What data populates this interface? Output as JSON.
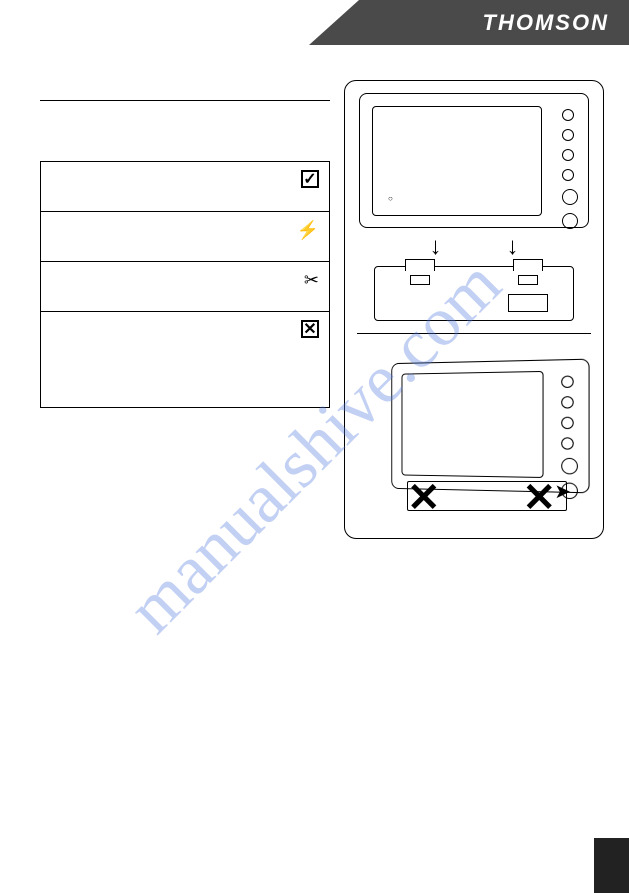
{
  "brand": "THOMSON",
  "watermark": "manualshive.com",
  "icons": {
    "check": "✓",
    "bolt": "⚡",
    "tool": "✂",
    "cross": "✕",
    "arrow_down": "↓",
    "motion_arrow": "➤"
  },
  "colors": {
    "header_bg": "#4a4a4a",
    "brand_text": "#ffffff",
    "border": "#000000",
    "watermark": "rgba(80, 120, 220, 0.35)",
    "footer_bg": "#222222"
  },
  "diagram": {
    "monitor_buttons_count": 6,
    "arrows_count": 2
  }
}
